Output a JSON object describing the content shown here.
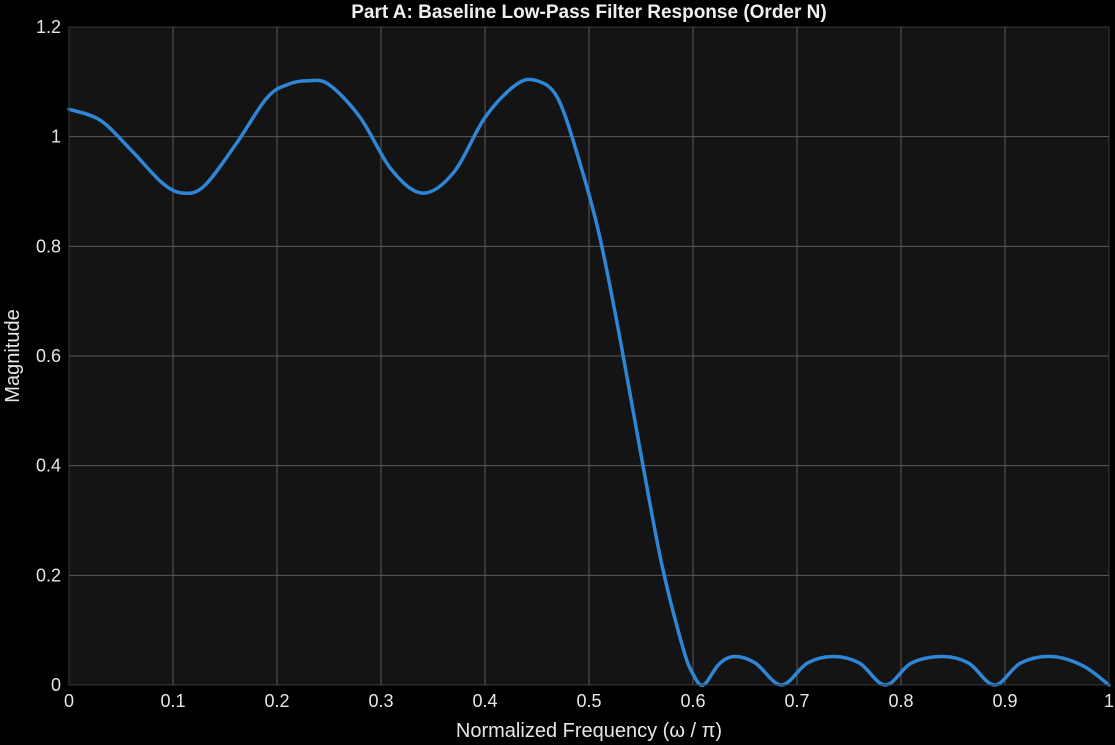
{
  "chart_data": {
    "type": "line",
    "title": "Part A: Baseline Low-Pass Filter Response (Order N)",
    "xlabel": "Normalized  Frequency  (ω  /  π)",
    "ylabel": "Magnitude",
    "xlim": [
      0,
      1
    ],
    "ylim": [
      0,
      1.2
    ],
    "xticks": [
      0,
      0.1,
      0.2,
      0.3,
      0.4,
      0.5,
      0.6,
      0.7,
      0.8,
      0.9,
      1
    ],
    "xtick_labels": [
      "0",
      "0.1",
      "0.2",
      "0.3",
      "0.4",
      "0.5",
      "0.6",
      "0.7",
      "0.8",
      "0.9",
      "1"
    ],
    "yticks": [
      0,
      0.2,
      0.4,
      0.6,
      0.8,
      1,
      1.2
    ],
    "ytick_labels": [
      "0",
      "0.2",
      "0.4",
      "0.6",
      "0.8",
      "1",
      "1.2"
    ],
    "grid": true,
    "colors": {
      "figure_bg": "#000000",
      "axes_bg": "#141414",
      "grid": "#5a5a5a",
      "line": "#2f86d6"
    },
    "series": [
      {
        "x": [
          0,
          0.03,
          0.06,
          0.09,
          0.11,
          0.13,
          0.16,
          0.19,
          0.21,
          0.23,
          0.25,
          0.28,
          0.31,
          0.34,
          0.37,
          0.4,
          0.43,
          0.45,
          0.47,
          0.49,
          0.51,
          0.53,
          0.55,
          0.57,
          0.59,
          0.6,
          0.61,
          0.625,
          0.64,
          0.66,
          0.685,
          0.71,
          0.735,
          0.76,
          0.785,
          0.81,
          0.84,
          0.865,
          0.89,
          0.915,
          0.945,
          0.975,
          1.0
        ],
        "y": [
          1.05,
          1.03,
          0.975,
          0.915,
          0.897,
          0.91,
          0.985,
          1.07,
          1.095,
          1.102,
          1.095,
          1.035,
          0.94,
          0.897,
          0.935,
          1.035,
          1.095,
          1.102,
          1.07,
          0.96,
          0.82,
          0.63,
          0.42,
          0.22,
          0.07,
          0.02,
          0.0,
          0.038,
          0.052,
          0.04,
          0.0,
          0.04,
          0.052,
          0.04,
          0.0,
          0.04,
          0.052,
          0.04,
          0.0,
          0.04,
          0.052,
          0.035,
          0.0
        ]
      }
    ]
  }
}
